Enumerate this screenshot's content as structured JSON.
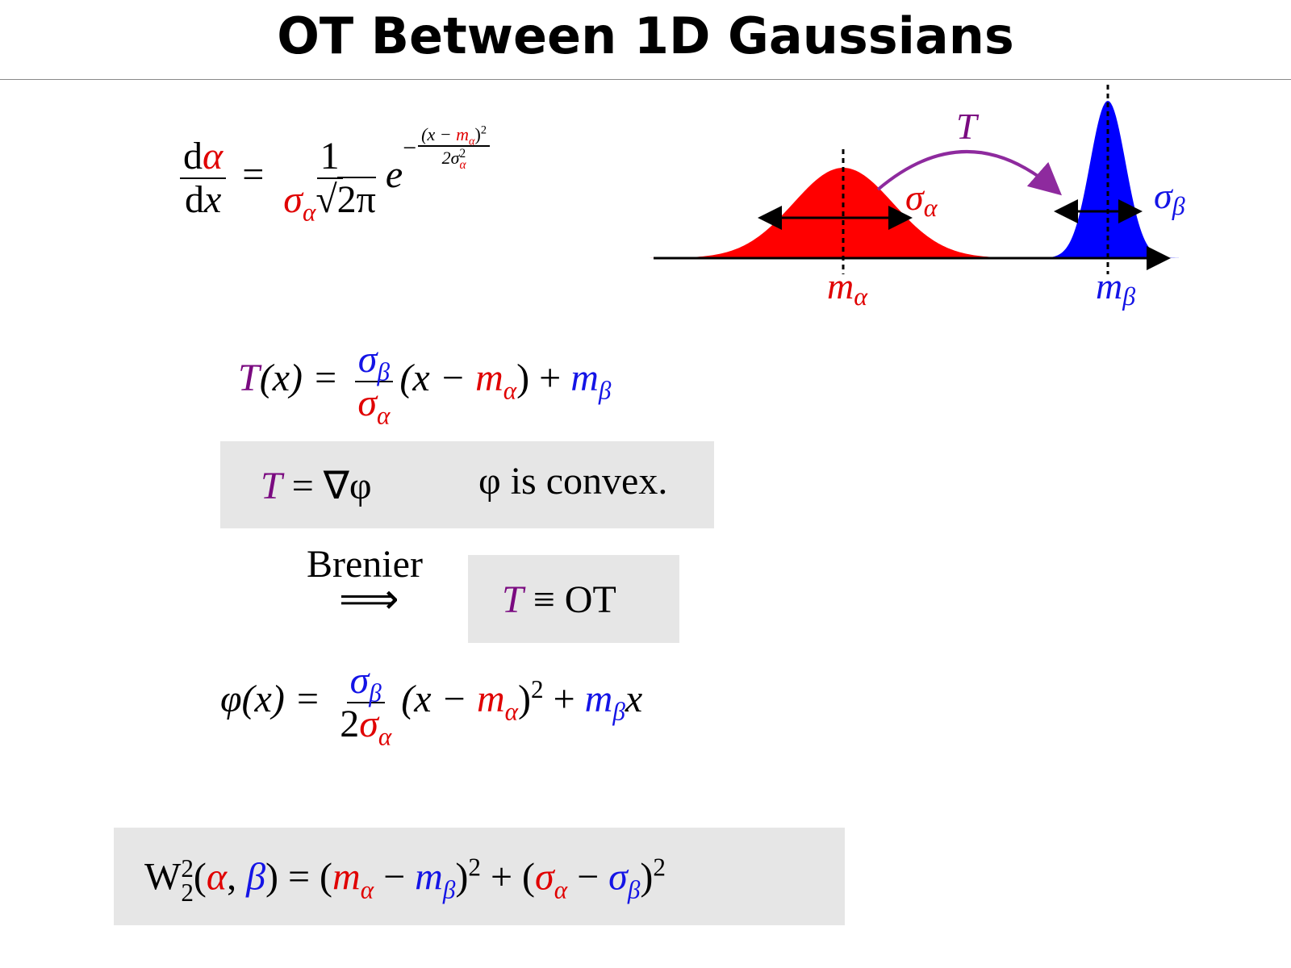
{
  "title": "OT Between 1D Gaussians",
  "figure": {
    "T": "T",
    "sigma_a": [
      "σ",
      "α"
    ],
    "sigma_b": [
      "σ",
      "β"
    ],
    "m_a": [
      "m",
      "α"
    ],
    "m_b": [
      "m",
      "β"
    ]
  },
  "density": {
    "num": [
      "d",
      "α"
    ],
    "den": [
      "d",
      "x"
    ],
    "eq": "=",
    "one": "1",
    "den2": [
      "σ",
      "α",
      "√",
      "2π"
    ],
    "e": "e",
    "exp_minus": "−",
    "exp_num": [
      "(x − ",
      "m",
      "α",
      ")",
      "2"
    ],
    "exp_den": [
      "2σ",
      "2",
      "α"
    ]
  },
  "transport": {
    "lhs": "T",
    "lhs2": "(x) =",
    "frac_num": [
      "σ",
      "β"
    ],
    "frac_den": [
      "σ",
      "α"
    ],
    "rhs": [
      "(x − ",
      "m",
      "α",
      ") + ",
      "m",
      "β"
    ]
  },
  "box1": {
    "T": "T",
    "eq": "= ∇φ",
    "claim": "φ is convex."
  },
  "brenier": {
    "label": "Brenier",
    "arrow": "⟹"
  },
  "box2": {
    "T": "T",
    "rest": "≡ OT"
  },
  "potential": {
    "lhs": "φ(x) =",
    "frac_num": [
      "σ",
      "β"
    ],
    "frac_den": [
      "2",
      "σ",
      "α"
    ],
    "rhs": [
      "(x − ",
      "m",
      "α",
      ")",
      "2",
      " + ",
      "m",
      "β",
      "x"
    ]
  },
  "wasserstein": [
    "W",
    "2",
    "2",
    "(",
    "α",
    ", ",
    "β",
    ") = (",
    "m",
    "α",
    " − ",
    "m",
    "β",
    ")",
    "2",
    " + (",
    "σ",
    "α",
    " − ",
    "σ",
    "β",
    ")",
    "2"
  ]
}
